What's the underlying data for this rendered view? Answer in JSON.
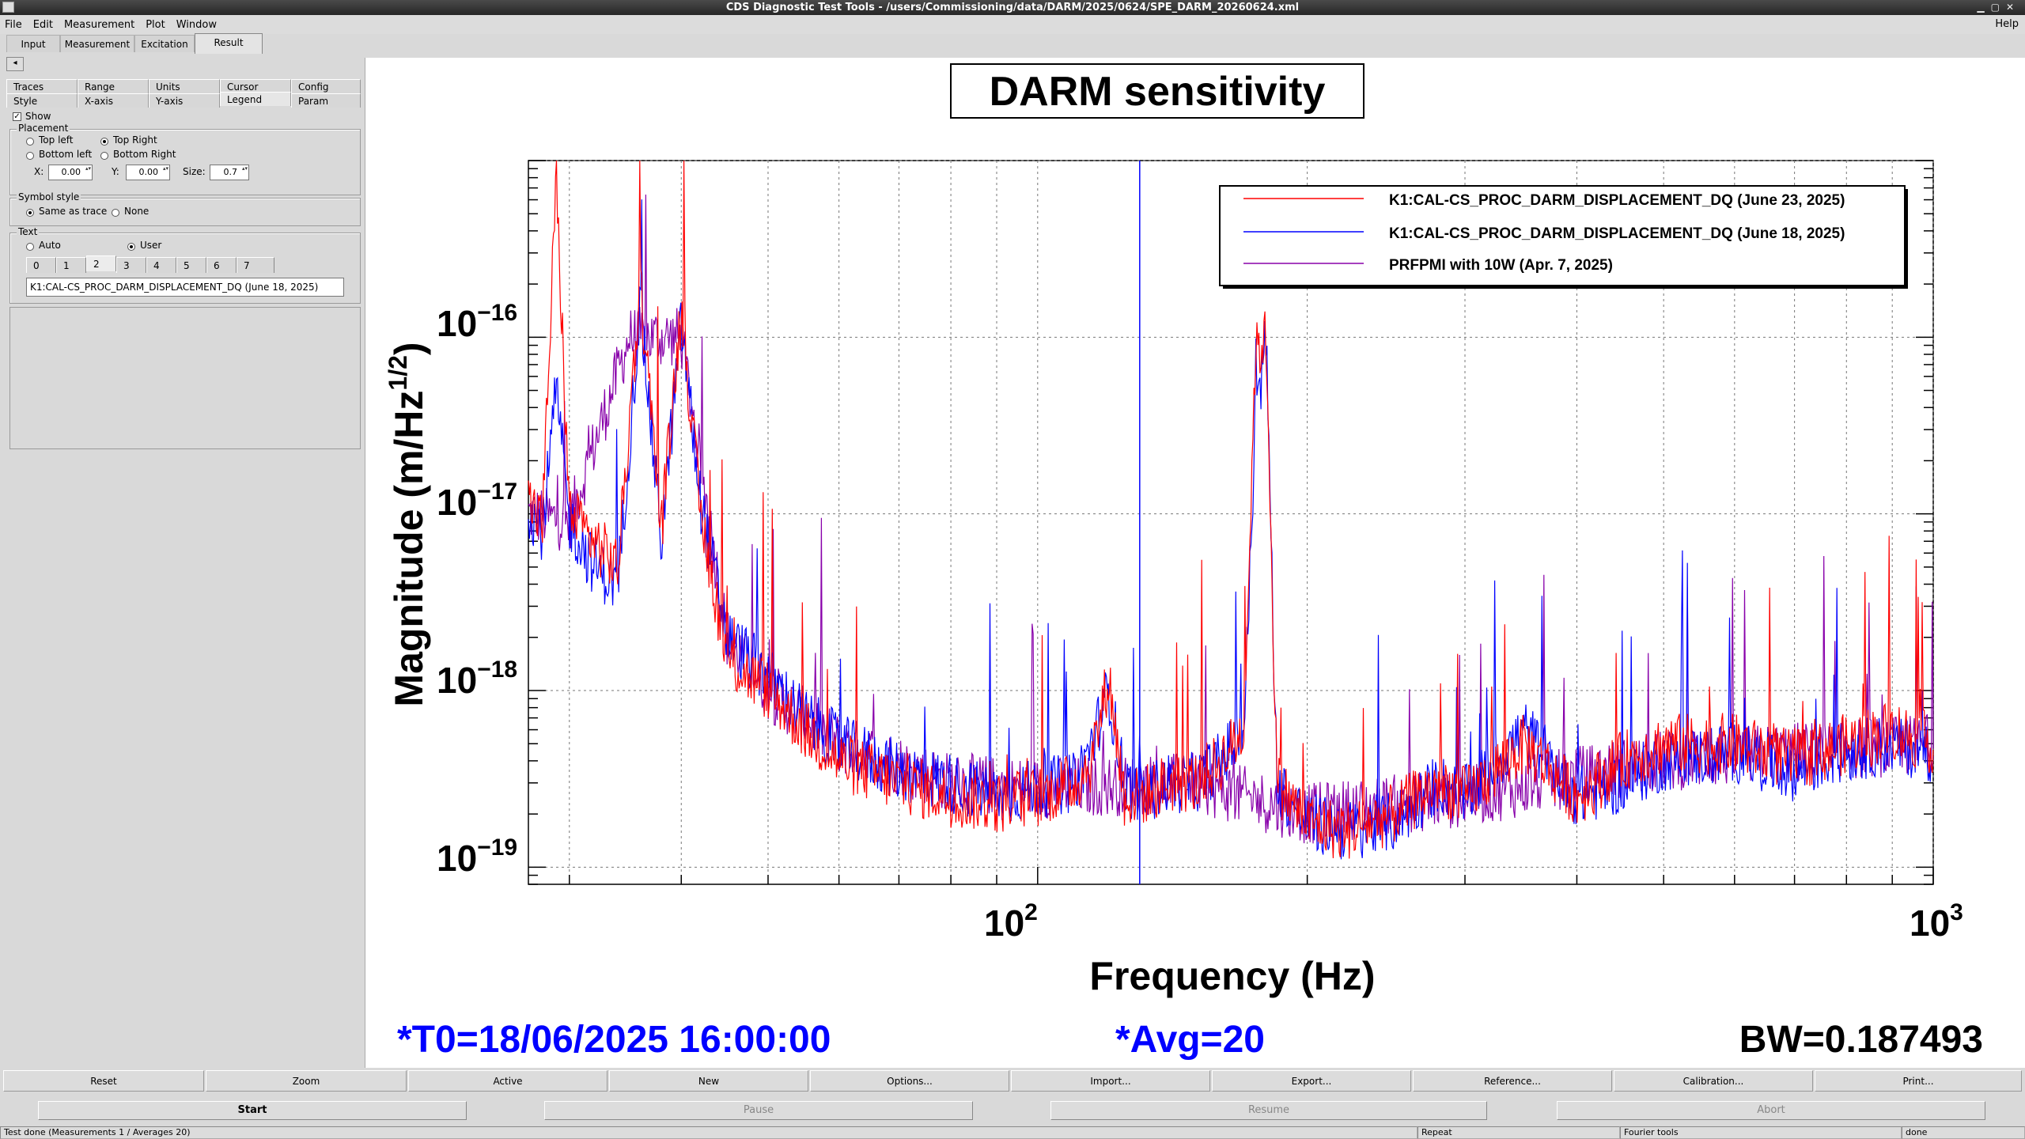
{
  "window": {
    "title": "CDS Diagnostic Test Tools - /users/Commissioning/data/DARM/2025/0624/SPE_DARM_20260624.xml"
  },
  "menu": {
    "items": [
      "File",
      "Edit",
      "Measurement",
      "Plot",
      "Window"
    ],
    "help": "Help"
  },
  "main_tabs": [
    "Input",
    "Measurement",
    "Excitation",
    "Result"
  ],
  "left_panel": {
    "collapse": "◂",
    "tabs_row1": [
      "Traces",
      "Range",
      "Units",
      "Cursor",
      "Config"
    ],
    "tabs_row2": [
      "Style",
      "X-axis",
      "Y-axis",
      "Legend",
      "Param"
    ],
    "active_tab": "Legend",
    "show_label": "Show",
    "placement": {
      "title": "Placement",
      "top_left": "Top left",
      "top_right": "Top Right",
      "bottom_left": "Bottom left",
      "bottom_right": "Bottom Right",
      "x_label": "X:",
      "x_value": "0.00",
      "y_label": "Y:",
      "y_value": "0.00",
      "size_label": "Size:",
      "size_value": "0.7"
    },
    "symbol_style": {
      "title": "Symbol style",
      "same": "Same as trace",
      "none": "None"
    },
    "text": {
      "title": "Text",
      "auto": "Auto",
      "user": "User",
      "tabs": [
        "0",
        "1",
        "2",
        "3",
        "4",
        "5",
        "6",
        "7"
      ],
      "value": "K1:CAL-CS_PROC_DARM_DISPLACEMENT_DQ (June 18, 2025)"
    }
  },
  "plot": {
    "title": "DARM sensitivity",
    "ylabel_main": "Magnitude (m/Hz",
    "ylabel_sup": "1/2",
    "ylabel_end": ")",
    "xlabel": "Frequency (Hz)",
    "yticks": [
      {
        "base": "10",
        "exp": "−16"
      },
      {
        "base": "10",
        "exp": "−17"
      },
      {
        "base": "10",
        "exp": "−18"
      },
      {
        "base": "10",
        "exp": "−19"
      }
    ],
    "xticks": [
      {
        "base": "10",
        "exp": "2"
      },
      {
        "base": "10",
        "exp": "3"
      }
    ],
    "legend": [
      {
        "label": "K1:CAL-CS_PROC_DARM_DISPLACEMENT_DQ (June 23, 2025)",
        "color": "#ff0000"
      },
      {
        "label": "K1:CAL-CS_PROC_DARM_DISPLACEMENT_DQ (June 18, 2025)",
        "color": "#0000ff"
      },
      {
        "label": "PRFPMI with 10W  (Apr. 7, 2025)",
        "color": "#8800aa"
      }
    ],
    "t0": "*T0=18/06/2025 16:00:00",
    "avg": "*Avg=20",
    "bw": "BW=0.187493"
  },
  "chart_data": {
    "type": "line",
    "title": "DARM sensitivity",
    "xlabel": "Frequency (Hz)",
    "ylabel": "Magnitude (m/Hz^1/2)",
    "x_scale": "log",
    "y_scale": "log",
    "xlim": [
      27,
      1000
    ],
    "ylim": [
      8e-20,
      1e-15
    ],
    "grid": true,
    "legend_position": "top-right",
    "cursor_x": 130,
    "series": [
      {
        "name": "K1:CAL-CS_PROC_DARM_DISPLACEMENT_DQ (June 23, 2025)",
        "color": "#ff0000",
        "x": [
          27,
          28,
          29,
          30,
          32,
          34,
          36,
          38,
          40,
          42,
          45,
          50,
          55,
          60,
          70,
          80,
          90,
          100,
          110,
          115,
          120,
          125,
          130,
          140,
          150,
          160,
          170,
          175,
          180,
          185,
          190,
          200,
          220,
          250,
          280,
          300,
          350,
          400,
          450,
          500,
          600,
          700,
          800,
          900,
          1000
        ],
        "y": [
          1.2e-17,
          9e-18,
          8e-16,
          1e-17,
          7e-18,
          5e-18,
          2e-16,
          8e-18,
          1.5e-16,
          1e-17,
          1.5e-18,
          1e-18,
          6e-19,
          4e-19,
          3e-19,
          2.5e-19,
          2.3e-19,
          2.5e-19,
          3e-19,
          4e-19,
          1.2e-18,
          2.5e-19,
          2.5e-19,
          3e-19,
          3e-19,
          4e-19,
          6e-19,
          8e-17,
          1e-16,
          3e-19,
          2.5e-19,
          1.8e-19,
          1.6e-19,
          2e-19,
          3e-19,
          2.5e-19,
          5e-19,
          2.5e-19,
          4e-19,
          5e-19,
          5e-19,
          4e-19,
          5e-19,
          6e-19,
          5e-19
        ]
      },
      {
        "name": "K1:CAL-CS_PROC_DARM_DISPLACEMENT_DQ (June 18, 2025)",
        "color": "#0000ff",
        "x": [
          27,
          28,
          29,
          30,
          32,
          34,
          36,
          38,
          40,
          42,
          45,
          50,
          55,
          60,
          70,
          80,
          90,
          100,
          110,
          115,
          120,
          125,
          130,
          140,
          150,
          160,
          170,
          175,
          180,
          185,
          190,
          200,
          220,
          250,
          280,
          300,
          350,
          400,
          450,
          500,
          600,
          700,
          800,
          900,
          1000
        ],
        "y": [
          1.1e-17,
          8e-18,
          5e-17,
          9e-18,
          5e-18,
          4e-18,
          1.5e-16,
          7e-18,
          1.2e-16,
          1.2e-17,
          2e-18,
          1.2e-18,
          7e-19,
          5e-19,
          3.5e-19,
          3e-19,
          2.5e-19,
          2.8e-19,
          3e-19,
          5e-19,
          1e-18,
          3e-19,
          2.5e-19,
          3e-19,
          3e-19,
          4e-19,
          6e-19,
          3e-17,
          1e-16,
          3e-19,
          2.5e-19,
          1.8e-19,
          1.6e-19,
          1.8e-19,
          3e-19,
          2.5e-19,
          6e-19,
          2.5e-19,
          3e-19,
          4e-19,
          4.5e-19,
          3.5e-19,
          4.5e-19,
          5e-19,
          4.5e-19
        ]
      },
      {
        "name": "PRFPMI with 10W  (Apr. 7, 2025)",
        "color": "#8800aa",
        "x": [
          27,
          30,
          35,
          40,
          45,
          50,
          60,
          80,
          100,
          150,
          200,
          300,
          500,
          1000
        ],
        "y": [
          1e-17,
          9e-18,
          1e-16,
          1e-16,
          2e-18,
          1e-18,
          5e-19,
          3e-19,
          2.8e-19,
          3e-19,
          2e-19,
          2.5e-19,
          4e-19,
          5e-19
        ]
      }
    ]
  },
  "bottom_buttons": [
    "Reset",
    "Zoom",
    "Active",
    "New",
    "Options...",
    "Import...",
    "Export...",
    "Reference...",
    "Calibration...",
    "Print..."
  ],
  "control_buttons": [
    "Start",
    "Pause",
    "Resume",
    "Abort"
  ],
  "status": {
    "main": "Test done (Measurements 1 / Averages 20)",
    "repeat": "Repeat",
    "tools": "Fourier tools",
    "done": "done"
  }
}
